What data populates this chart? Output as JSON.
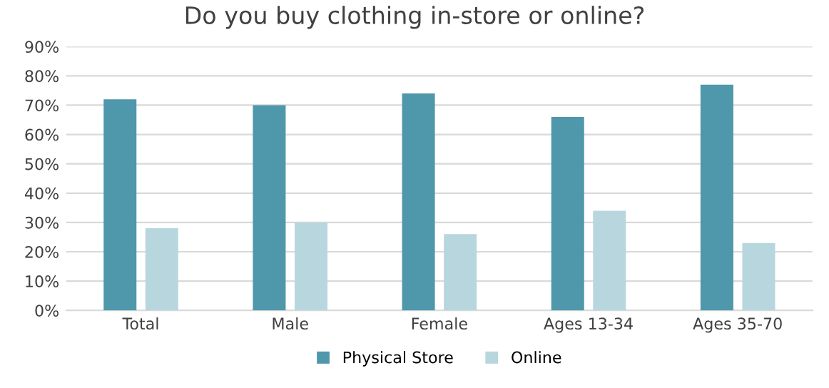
{
  "chart_data": {
    "type": "bar",
    "title": "Do you buy clothing in-store or online?",
    "categories": [
      "Total",
      "Male",
      "Female",
      "Ages 13-34",
      "Ages 35-70"
    ],
    "series": [
      {
        "name": "Physical Store",
        "color": "#4f97ab",
        "values": [
          72,
          70,
          74,
          66,
          77
        ]
      },
      {
        "name": "Online",
        "color": "#b8d6dd",
        "values": [
          28,
          30,
          26,
          34,
          23
        ]
      }
    ],
    "ylim": [
      0,
      90
    ],
    "yticks": [
      {
        "value": 0,
        "label": "0%"
      },
      {
        "value": 10,
        "label": "10%"
      },
      {
        "value": 20,
        "label": "20%"
      },
      {
        "value": 30,
        "label": "30%"
      },
      {
        "value": 40,
        "label": "40%"
      },
      {
        "value": 50,
        "label": "50%"
      },
      {
        "value": 60,
        "label": "60%"
      },
      {
        "value": 70,
        "label": "70%"
      },
      {
        "value": 80,
        "label": "80%"
      },
      {
        "value": 90,
        "label": "90%"
      }
    ],
    "grid": "y",
    "legend": "bottom"
  }
}
